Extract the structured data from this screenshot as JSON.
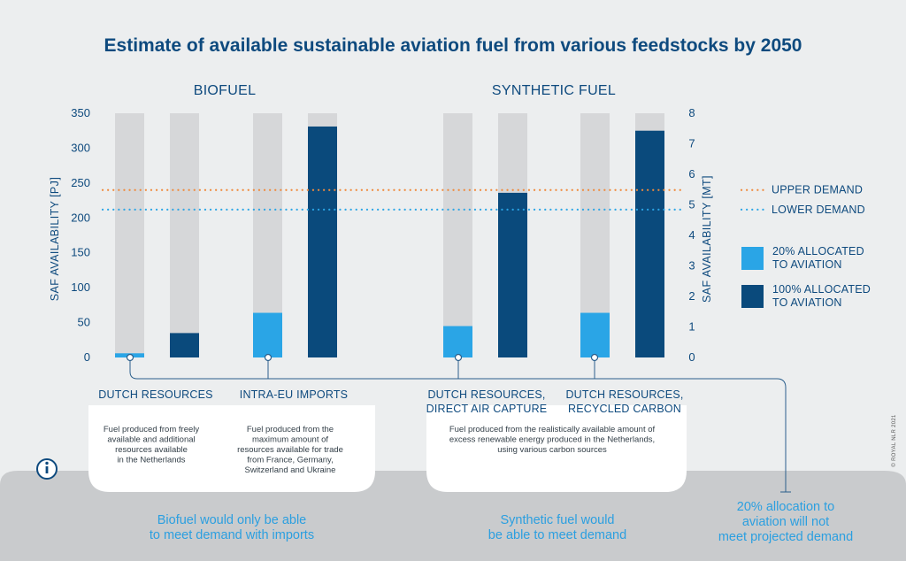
{
  "title": "Estimate of available sustainable aviation fuel from various feedstocks by 2050",
  "credit": "© ROYAL NLR 2021",
  "groups": [
    {
      "label": "BIOFUEL",
      "description": [
        "Fuel produced from freely available and additional resources available in the Netherlands",
        "Fuel produced from the maximum amount of resources available for trade from France, Germany, Switzerland and Ukraine"
      ],
      "conclusion": [
        "Biofuel would only be able",
        "to meet demand with imports"
      ]
    },
    {
      "label": "SYNTHETIC FUEL",
      "description": [
        "Fuel produced from the realistically available amount of excess renewable energy produced in the Netherlands, using various carbon sources"
      ],
      "conclusion": [
        "Synthetic fuel would",
        "be able to meet demand"
      ]
    }
  ],
  "side_conclusion": [
    "20% allocation to",
    "aviation will not",
    "meet projected demand"
  ],
  "colors": {
    "title": "#0e4a7e",
    "allocated_20": "#2aa5e6",
    "allocated_100": "#0a4a7c",
    "potential": "#d6d7d9",
    "upper_demand": "#f08a3c",
    "lower_demand": "#2aa5e6",
    "conclusion_text": "#2b9fe0"
  },
  "chart_data": {
    "type": "bar",
    "ylabel": "SAF AVAILABILITY [PJ]",
    "y2label": "SAF AVAILABILITY [MT]",
    "ylim": [
      0,
      350
    ],
    "yticks": [
      0,
      50,
      100,
      150,
      200,
      250,
      300,
      350
    ],
    "y2lim": [
      0,
      8
    ],
    "y2ticks": [
      0,
      1,
      2,
      3,
      4,
      5,
      6,
      7,
      8
    ],
    "grid": false,
    "legend_position": "right",
    "categories": [
      [
        "DUTCH RESOURCES"
      ],
      [
        "INTRA-EU IMPORTS"
      ],
      [
        "DUTCH RESOURCES,",
        "DIRECT AIR CAPTURE"
      ],
      [
        "DUTCH RESOURCES,",
        "RECYCLED CARBON"
      ]
    ],
    "series": [
      {
        "name": "20% ALLOCATED TO AVIATION",
        "legend_lines": [
          "20% ALLOCATED",
          "TO AVIATION"
        ],
        "values": [
          6,
          64,
          45,
          64
        ]
      },
      {
        "name": "100% ALLOCATED TO AVIATION",
        "legend_lines": [
          "100% ALLOCATED",
          "TO AVIATION"
        ],
        "values": [
          35,
          331,
          236,
          325
        ]
      }
    ],
    "background_bar_max": 350,
    "reference_lines": [
      {
        "name": "UPPER DEMAND",
        "value": 240
      },
      {
        "name": "LOWER DEMAND",
        "value": 212
      }
    ]
  }
}
